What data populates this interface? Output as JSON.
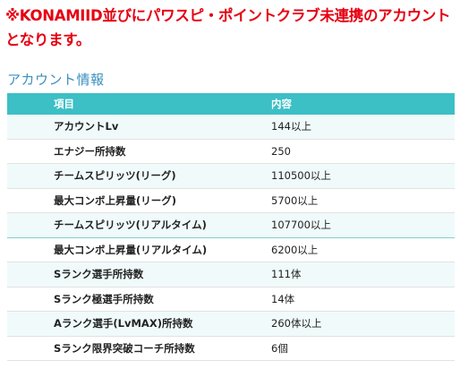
{
  "notice": {
    "line1": "※KONAMIID並びにパワスピ・ポイントクラブ未連携のアカウント",
    "line2": "となります。"
  },
  "section_title": "アカウント情報",
  "table": {
    "headers": [
      "項目",
      "内容"
    ],
    "rows": [
      {
        "item": "アカウントLv",
        "value": "144以上"
      },
      {
        "item": "エナジー所持数",
        "value": "250"
      },
      {
        "item": "チームスピリッツ(リーグ)",
        "value": "110500以上"
      },
      {
        "item": "最大コンボ上昇量(リーグ)",
        "value": "5700以上"
      },
      {
        "item": "チームスピリッツ(リアルタイム)",
        "value": "107700以上"
      },
      {
        "item": "最大コンボ上昇量(リアルタイム)",
        "value": "6200以上"
      },
      {
        "item": "Sランク選手所持数",
        "value": "111体"
      },
      {
        "item": "Sランク極選手所持数",
        "value": "14体"
      },
      {
        "item": "Aランク選手(LvMAX)所持数",
        "value": "260体以上"
      },
      {
        "item": "Sランク限界突破コーチ所持数",
        "value": "6個"
      }
    ]
  },
  "colors": {
    "notice": "#e60012",
    "heading": "#3a8fbf",
    "header_bg": "#3cbfc5",
    "stripe": "#f0fafa"
  }
}
